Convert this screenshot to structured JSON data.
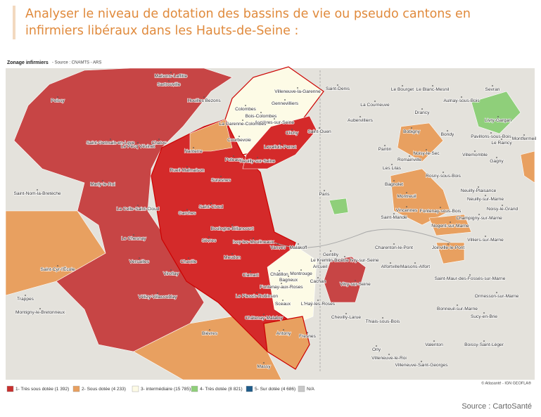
{
  "header": {
    "lines": [
      "Analyser le niveau de dotation des bassins de vie ou pseudo cantons en",
      "infirmiers libéraux dans les Hauts-de-Seine :"
    ]
  },
  "map": {
    "title": "Zonage infirmiers",
    "subtitle": "- Source : CNAMTS - ARS",
    "places": [
      "Maisons-Laffitte",
      "Sartrouville",
      "Poissy",
      "Houilles Bezons",
      "Saint-Denis",
      "Villeneuve-la-Garenne",
      "Le Bourget",
      "Le Blanc-Mesnil",
      "Aulnay-sous-Bois",
      "Sevran",
      "Gennevilliers",
      "La Courneuve",
      "Colombes",
      "Bois-Colombes",
      "Drancy",
      "Livry-Gargan",
      "Asnières-sur-Seine",
      "La Garenne-Colombes",
      "Aubervilliers",
      "Bobigny",
      "Clichy",
      "Saint-Ouen",
      "Bondy",
      "Pavillons-sous-Bois",
      "Le Raincy",
      "Saint-Germain-en-Laye",
      "Chatou",
      "Le Pecq Vésinet",
      "Courbevoie",
      "Levallois-Perret",
      "Montfermeil",
      "Noisy-le-Sec",
      "Villemomble",
      "Pantin",
      "Nanterre",
      "Puteaux",
      "Neuilly-sur-Seine",
      "Romainville",
      "Gagny",
      "Rueil-Malmaison",
      "Les Lilas",
      "Rosny-sous-Bois",
      "Suresnes",
      "Marly-le-Roi",
      "Bagnolet",
      "Neuilly-Plaisance",
      "Saint-Nom-la-Bretèche",
      "Paris",
      "Montreuil",
      "Neuilly-sur-Marne",
      "La Celle-Saint-Cloud",
      "Saint-Cloud",
      "Vincennes",
      "Fontenay-sous-Bois",
      "Noisy-le-Grand",
      "Garches",
      "Saint-Mandé",
      "Champigny-sur-Marne",
      "Boulogne-Billancourt",
      "Nogent-sur-Marne",
      "Le Chesnay",
      "Issy-les-Moulineaux",
      "Sèvres",
      "Villiers-sur-Marne",
      "Charenton-le-Pont",
      "Joinville-le-Pont",
      "Vanves",
      "Malakoff",
      "Meudon",
      "Gentilly",
      "Le Kremlin-Bicêtre Ivry-sur-Seine",
      "Alfortville",
      "Maisons-Alfort",
      "Chaville",
      "Versailles",
      "Saint-Cyr-l'École",
      "Viroflay",
      "Clamart",
      "Châtillon",
      "Bagneux",
      "Montrouge",
      "Arcueil",
      "Cachan",
      "Vitry-sur-Seine",
      "Saint-Maur-des-Fossés-sur-Marne",
      "Fontenay-aux-Roses",
      "Le Plessis-Robinson",
      "Ormesson-sur-Marne",
      "Vélizy-Villacoublay",
      "Trappes",
      "Montigny-le-Bretonneux",
      "Sceaux",
      "L'Haÿ-les-Roses",
      "Bonneuil-sur-Marne",
      "Chevilly-Larue",
      "Thiais-sous-Bois",
      "Châtenay-Malabry",
      "Sucy-en-Brie",
      "Bièvres",
      "Antony",
      "Fresnes",
      "Valenton",
      "Boissy-Saint-Léger",
      "Orly",
      "Villeneuve-le-Roi",
      "Villeneuve-Saint-Georges",
      "Massy"
    ],
    "legend": [
      {
        "label": "1- Très sous dotée (1 392)",
        "color": "#c8302e"
      },
      {
        "label": "2- Sous dotée (4 233)",
        "color": "#e8a060"
      },
      {
        "label": "3- intermédiaire (15 785)",
        "color": "#fdfbe6"
      },
      {
        "label": "4- Très dotée (8 821)",
        "color": "#8fcf7a"
      },
      {
        "label": "5- Sur dotée (4 686)",
        "color": "#1f5c8a"
      },
      {
        "label": "N/A",
        "color": "#c8c8c8"
      }
    ],
    "credit": "© Atlasanté - IGN GEOFLA®"
  },
  "footer": {
    "source": "Source : CartoSanté"
  }
}
